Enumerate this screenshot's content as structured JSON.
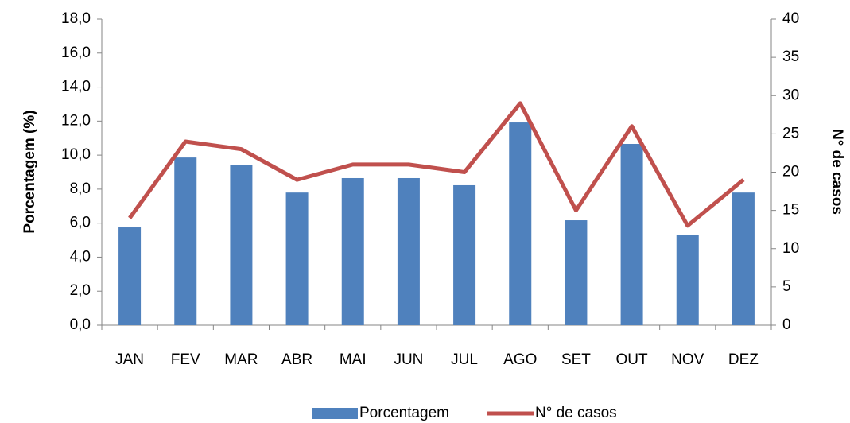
{
  "chart_data": {
    "type": "bar",
    "categories": [
      "JAN",
      "FEV",
      "MAR",
      "ABR",
      "MAI",
      "JUN",
      "JUL",
      "AGO",
      "SET",
      "OUT",
      "NOV",
      "DEZ"
    ],
    "series": [
      {
        "name": "Porcentagem",
        "color": "#4f81bd",
        "values": [
          5.75,
          9.86,
          9.44,
          7.8,
          8.65,
          8.65,
          8.23,
          11.92,
          6.17,
          10.66,
          5.33,
          7.8
        ]
      },
      {
        "name": "N° de casos",
        "color": "#c0504d",
        "type": "line",
        "axis": "y2",
        "values": [
          14,
          24,
          23,
          19,
          21,
          21,
          20,
          29,
          15,
          26,
          13,
          19
        ]
      }
    ],
    "ylabel": "Porcentagem (%)",
    "y2label": "N° de casos",
    "ylim": [
      0,
      18
    ],
    "yticks": [
      {
        "value": 0,
        "label": "0,0"
      },
      {
        "value": 2,
        "label": "2,0"
      },
      {
        "value": 4,
        "label": "4,0"
      },
      {
        "value": 6,
        "label": "6,0"
      },
      {
        "value": 8,
        "label": "8,0"
      },
      {
        "value": 10,
        "label": "10,0"
      },
      {
        "value": 12,
        "label": "12,0"
      },
      {
        "value": 14,
        "label": "14,0"
      },
      {
        "value": 16,
        "label": "16,0"
      },
      {
        "value": 18,
        "label": "18,0"
      }
    ],
    "y2lim": [
      0,
      40
    ],
    "y2ticks": [
      0,
      5,
      10,
      15,
      20,
      25,
      30,
      35,
      40
    ],
    "grid": false,
    "legend": "bottom"
  }
}
